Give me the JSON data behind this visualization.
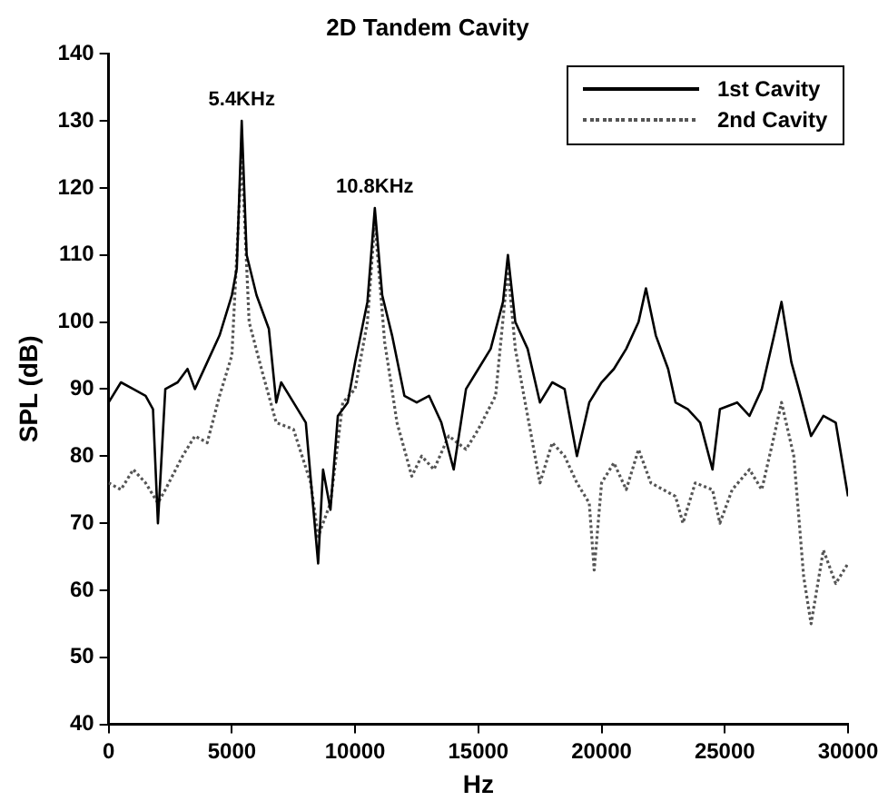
{
  "chart_data": {
    "type": "line",
    "title": "2D Tandem Cavity",
    "xlabel": "Hz",
    "ylabel": "SPL (dB)",
    "xlim": [
      0,
      30000
    ],
    "xticks": [
      0,
      5000,
      10000,
      15000,
      20000,
      25000,
      30000
    ],
    "ylim": [
      40,
      140
    ],
    "yticks": [
      40,
      50,
      60,
      70,
      80,
      90,
      100,
      110,
      120,
      130,
      140
    ],
    "grid": false,
    "legend": "top right",
    "marker": "none",
    "annotations": [
      {
        "text": "5.4KHz",
        "x": 5400,
        "y": 130
      },
      {
        "text": "10.8KHz",
        "x": 10800,
        "y": 117
      }
    ],
    "series": [
      {
        "name": "1st Cavity",
        "color": "#000000",
        "line_style": "solid",
        "x": [
          0,
          500,
          1000,
          1500,
          1800,
          2000,
          2300,
          2800,
          3200,
          3500,
          4000,
          4500,
          5000,
          5200,
          5400,
          5600,
          6000,
          6500,
          6800,
          7000,
          7500,
          8000,
          8500,
          8700,
          9000,
          9300,
          9700,
          10000,
          10500,
          10800,
          11100,
          11500,
          12000,
          12500,
          13000,
          13500,
          14000,
          14500,
          15000,
          15500,
          16000,
          16200,
          16500,
          17000,
          17500,
          18000,
          18500,
          19000,
          19500,
          20000,
          20500,
          21000,
          21500,
          21800,
          22200,
          22700,
          23000,
          23500,
          24000,
          24500,
          24800,
          25500,
          26000,
          26500,
          27000,
          27300,
          27700,
          28000,
          28500,
          29000,
          29500,
          30000
        ],
        "values": [
          88,
          91,
          90,
          89,
          87,
          70,
          90,
          91,
          93,
          90,
          94,
          98,
          104,
          108,
          130,
          110,
          104,
          99,
          88,
          91,
          88,
          85,
          64,
          78,
          72,
          86,
          88,
          94,
          103,
          117,
          104,
          98,
          89,
          88,
          89,
          85,
          78,
          90,
          93,
          96,
          103,
          110,
          100,
          96,
          88,
          91,
          90,
          80,
          88,
          91,
          93,
          96,
          100,
          105,
          98,
          93,
          88,
          87,
          85,
          78,
          87,
          88,
          86,
          90,
          98,
          103,
          94,
          90,
          83,
          86,
          85,
          74
        ]
      },
      {
        "name": "2nd Cavity",
        "color": "#555555",
        "line_style": "dotted",
        "x": [
          0,
          500,
          1000,
          1500,
          2000,
          2300,
          3000,
          3500,
          4000,
          4500,
          5000,
          5400,
          5700,
          6200,
          6800,
          7500,
          8200,
          8500,
          9000,
          9500,
          10000,
          10500,
          10800,
          11200,
          11700,
          12300,
          12700,
          13200,
          13800,
          14500,
          15000,
          15700,
          16200,
          16500,
          17000,
          17500,
          18000,
          18500,
          19000,
          19500,
          19700,
          20000,
          20500,
          21000,
          21500,
          22000,
          22500,
          23000,
          23300,
          23800,
          24500,
          24800,
          25300,
          26000,
          26500,
          27000,
          27300,
          27800,
          28200,
          28500,
          29000,
          29500,
          30000
        ],
        "values": [
          76,
          75,
          78,
          76,
          73,
          75,
          80,
          83,
          82,
          89,
          95,
          125,
          100,
          93,
          85,
          84,
          76,
          68,
          73,
          88,
          90,
          100,
          115,
          97,
          85,
          77,
          80,
          78,
          83,
          81,
          84,
          89,
          108,
          96,
          86,
          76,
          82,
          80,
          76,
          73,
          63,
          76,
          79,
          75,
          81,
          76,
          75,
          74,
          70,
          76,
          75,
          70,
          75,
          78,
          75,
          83,
          88,
          80,
          62,
          55,
          66,
          61,
          64
        ]
      }
    ]
  }
}
